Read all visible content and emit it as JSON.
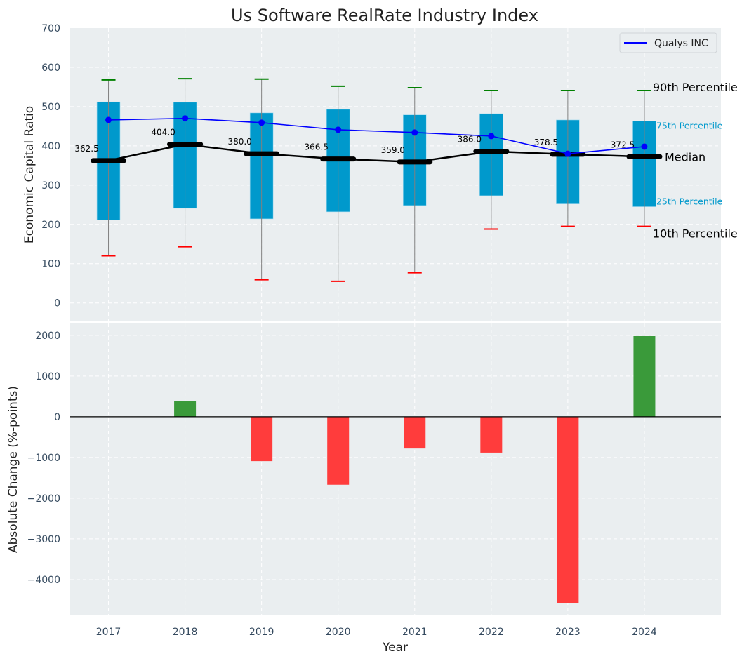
{
  "chart_data": [
    {
      "type": "box",
      "title": "Us Software RealRate Industry Index",
      "xlabel": "",
      "ylabel": "Economic Capital Ratio",
      "categories": [
        "2017",
        "2018",
        "2019",
        "2020",
        "2021",
        "2022",
        "2023",
        "2024"
      ],
      "ylim": [
        -47,
        700
      ],
      "yticks": [
        0,
        100,
        200,
        300,
        400,
        500,
        600,
        700
      ],
      "grid": true,
      "series": [
        {
          "name": "90th Percentile",
          "values": [
            568,
            571,
            570,
            552,
            548,
            541,
            541,
            541
          ]
        },
        {
          "name": "75th Percentile",
          "values": [
            512,
            511,
            484,
            493,
            479,
            482,
            466,
            463
          ]
        },
        {
          "name": "Median",
          "values": [
            362.5,
            404.0,
            380.0,
            366.5,
            359.0,
            386.0,
            378.5,
            372.5
          ]
        },
        {
          "name": "25th Percentile",
          "values": [
            211,
            241,
            214,
            232,
            248,
            273,
            252,
            245
          ]
        },
        {
          "name": "10th Percentile",
          "values": [
            120,
            143,
            59,
            55,
            77,
            188,
            195,
            195
          ]
        },
        {
          "name": "Qualys INC",
          "values": [
            466,
            470,
            459,
            441,
            434,
            425,
            380,
            398
          ]
        }
      ],
      "median_labels": [
        "362.5",
        "404.0",
        "380.0",
        "366.5",
        "359.0",
        "386.0",
        "378.5",
        "372.5"
      ],
      "annotations": {
        "p90": "90th Percentile",
        "p75": "75th Percentile",
        "median": "Median",
        "p25": "25th Percentile",
        "p10": "10th Percentile"
      },
      "legend": {
        "position": "top-right",
        "entries": [
          "Qualys INC"
        ]
      }
    },
    {
      "type": "bar",
      "title": "",
      "xlabel": "Year",
      "ylabel": "Absolute Change (%-points)",
      "categories": [
        "2017",
        "2018",
        "2019",
        "2020",
        "2021",
        "2022",
        "2023",
        "2024"
      ],
      "values": [
        0,
        380,
        -1090,
        -1670,
        -780,
        -880,
        -4570,
        1980
      ],
      "ylim": [
        -4880,
        2290
      ],
      "yticks": [
        -4000,
        -3000,
        -2000,
        -1000,
        0,
        1000,
        2000
      ],
      "ytick_labels": [
        "−4000",
        "−3000",
        "−2000",
        "−1000",
        "0",
        "1000",
        "2000"
      ],
      "grid": true
    }
  ],
  "colors": {
    "plot_bg": "#eaeef0",
    "box": "#0099cc",
    "whisker": "#808080",
    "p90_cap": "#008000",
    "p10_cap": "#ff0000",
    "median": "#000000",
    "qualys": "#0000ff",
    "pos_bar": "#3a9a3a",
    "neg_bar": "#ff3c3c",
    "annot_blue": "#0099cc",
    "tick_text": "#34495e"
  }
}
